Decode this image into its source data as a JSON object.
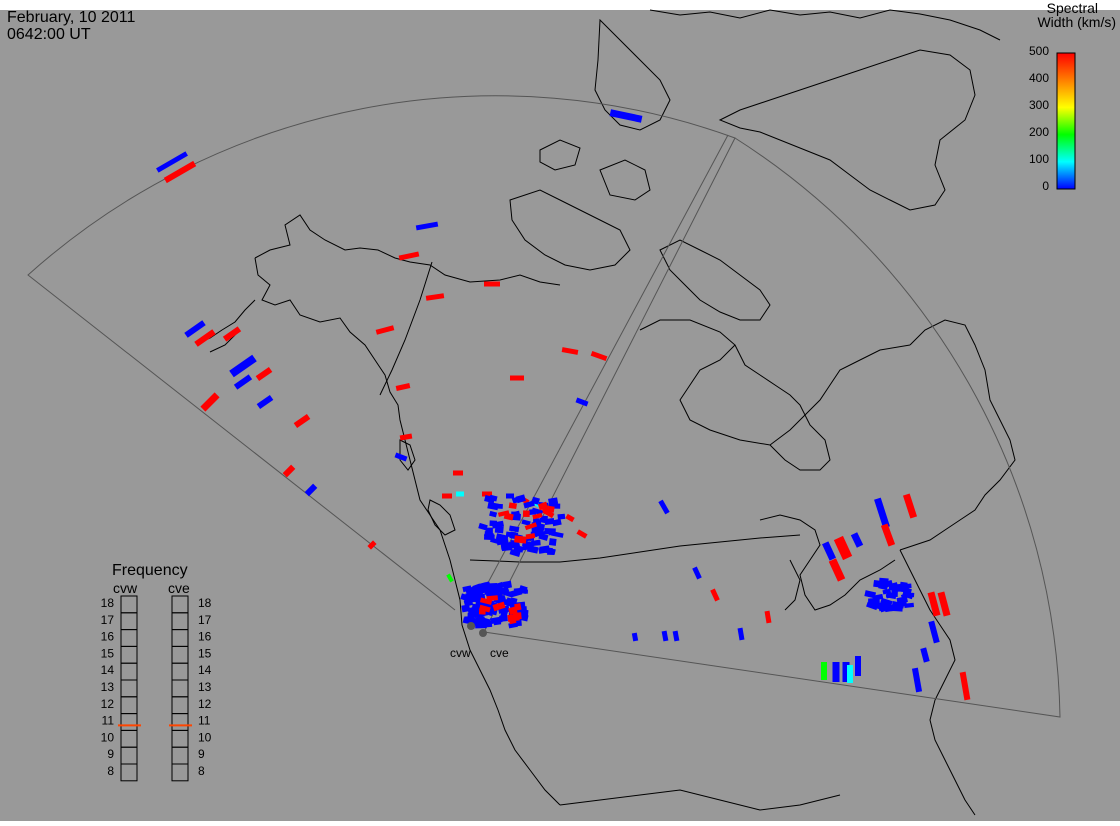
{
  "header": {
    "date": "February, 10 2011",
    "time": "0642:00 UT"
  },
  "colorbar": {
    "title_line1": "Spectral",
    "title_line2": "Width (km/s)",
    "ticks": [
      "500",
      "400",
      "300",
      "200",
      "100",
      "0"
    ],
    "gradient": [
      "#ff0000",
      "#ff7f00",
      "#ffff00",
      "#00ff00",
      "#00ffff",
      "#0000ff"
    ]
  },
  "radars": {
    "west_label": "cvw",
    "east_label": "cve"
  },
  "frequency": {
    "title": "Frequency",
    "col_left": "cvw",
    "col_right": "cve",
    "levels": [
      "18",
      "17",
      "16",
      "15",
      "14",
      "13",
      "12",
      "11",
      "10",
      "9",
      "8"
    ],
    "cvw_value": 10.8,
    "cve_value": 10.8,
    "marker_color": "#ff4500"
  },
  "colors": {
    "background": "#999999",
    "coast": "#000000",
    "fov_line": "#555555",
    "echo_high_width": "#ff0000",
    "echo_low_width": "#0000ff",
    "echo_mid_width": "#00ffff",
    "echo_green": "#00ff00"
  }
}
